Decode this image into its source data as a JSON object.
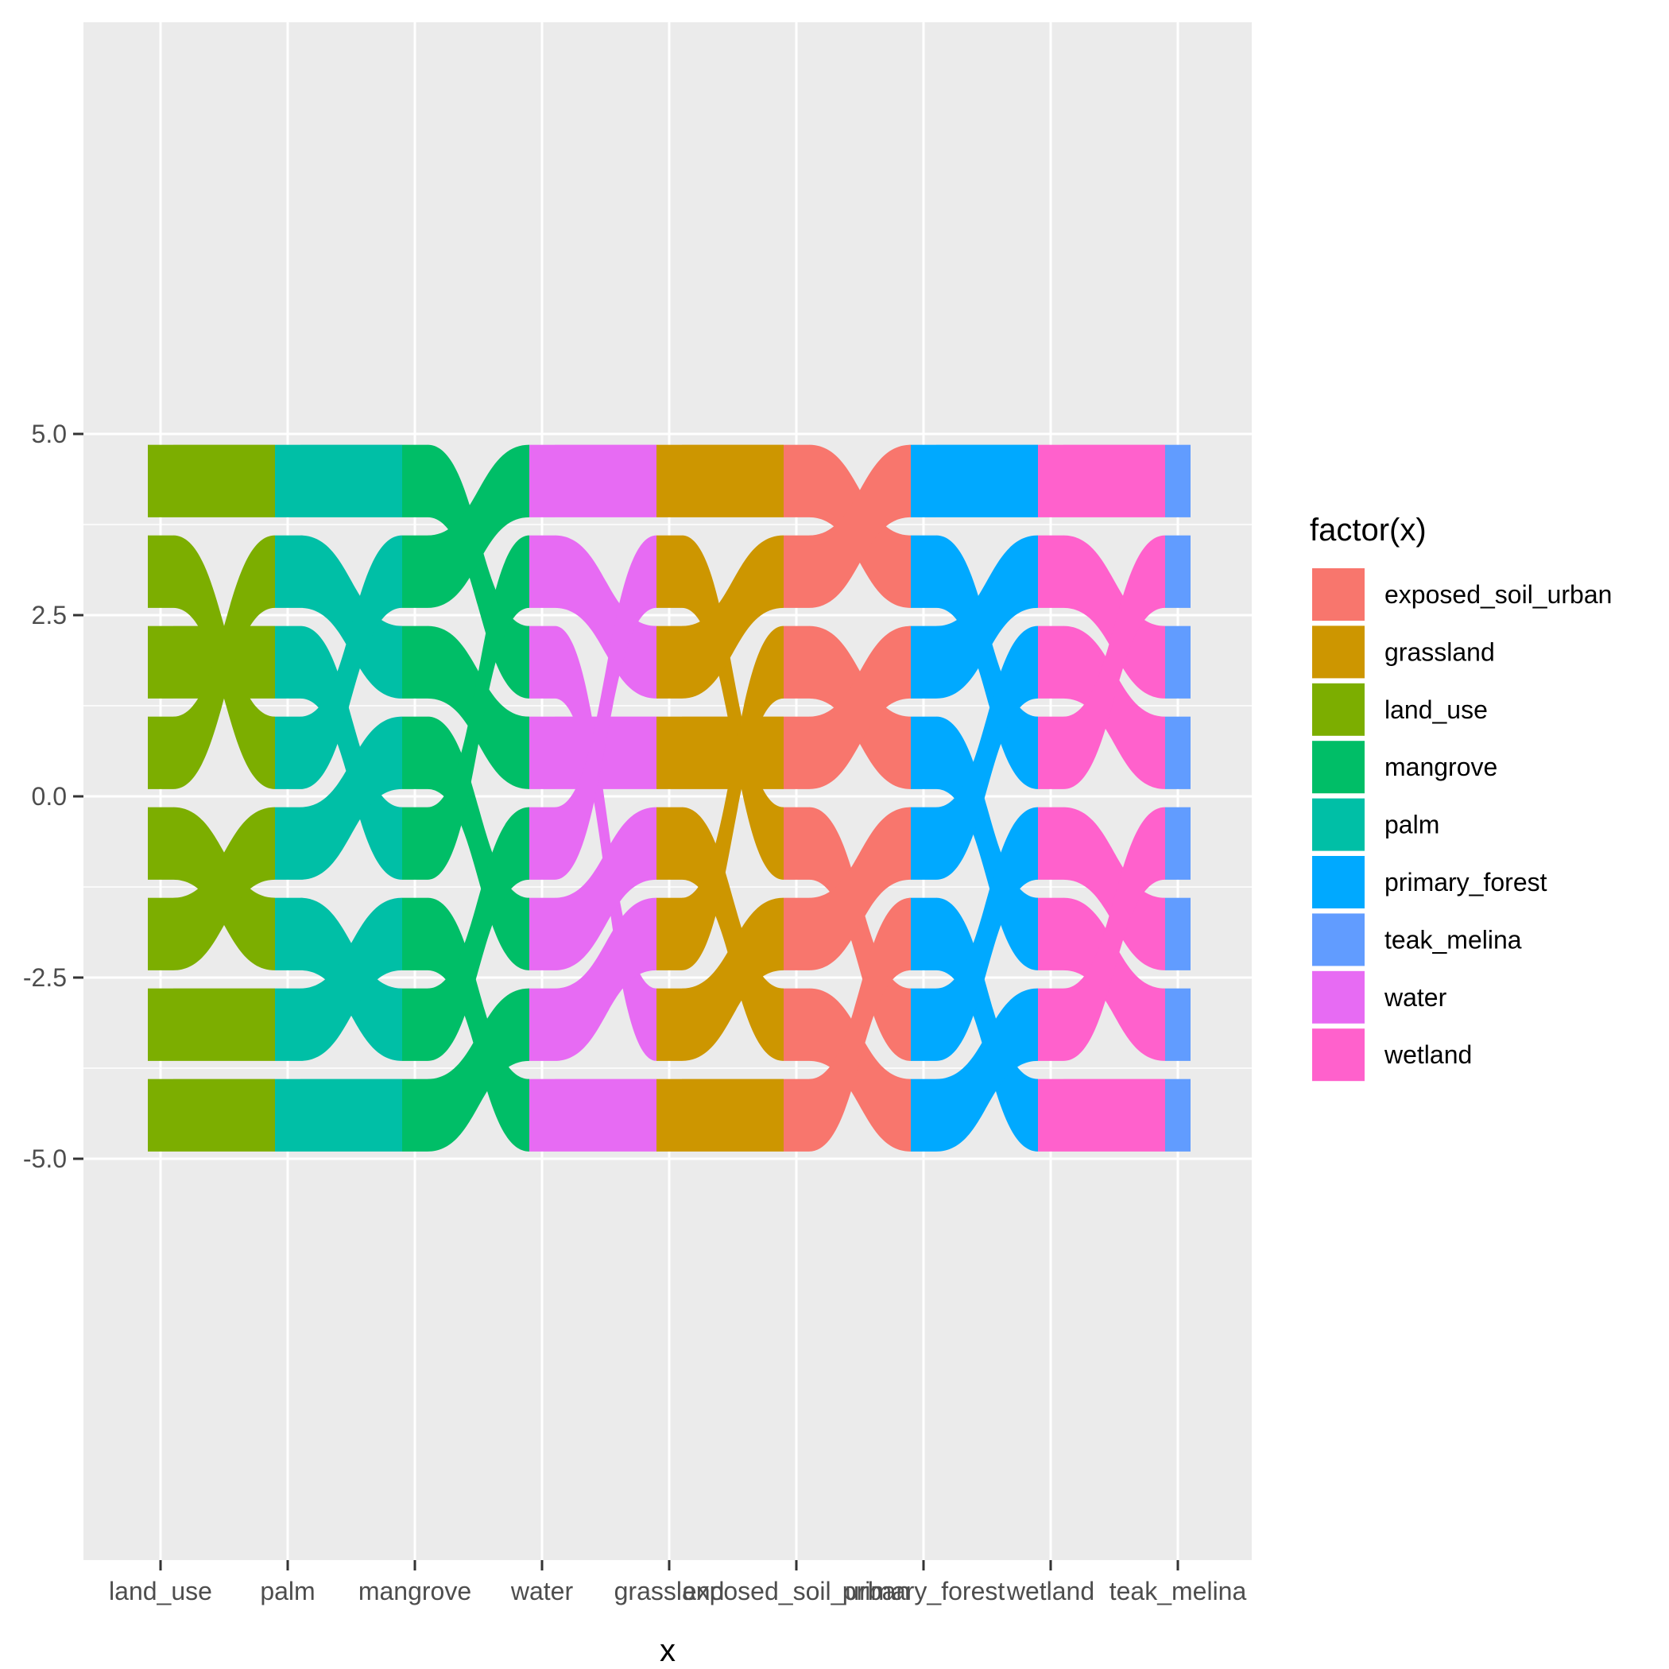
{
  "chart_data": {
    "type": "area",
    "title": "",
    "xlabel": "x",
    "ylabel": "",
    "x_categories": [
      "land_use",
      "palm",
      "mangrove",
      "water",
      "grassland",
      "exposed_soil_urban",
      "primary_forest",
      "wetland",
      "teak_melina"
    ],
    "ylim": [
      -5.0,
      5.0
    ],
    "y_ticks": [
      5.0,
      2.5,
      0.0,
      -2.5,
      -5.0
    ],
    "y_tick_labels": [
      "5.0",
      "2.5",
      "0.0",
      "-2.5",
      "-5.0"
    ],
    "grid": true,
    "legend": {
      "title": "factor(x)",
      "position": "right",
      "entries": [
        {
          "label": "exposed_soil_urban",
          "color": "#F8766D"
        },
        {
          "label": "grassland",
          "color": "#CD9600"
        },
        {
          "label": "land_use",
          "color": "#7CAE00"
        },
        {
          "label": "mangrove",
          "color": "#00BE67"
        },
        {
          "label": "palm",
          "color": "#00BFA6"
        },
        {
          "label": "primary_forest",
          "color": "#00A9FF"
        },
        {
          "label": "teak_melina",
          "color": "#619CFF"
        },
        {
          "label": "water",
          "color": "#E76BF3"
        },
        {
          "label": "wetland",
          "color": "#FF61CC"
        }
      ]
    },
    "stratum_color_by_x": [
      "#7CAE00",
      "#00BFA6",
      "#00BE67",
      "#E76BF3",
      "#CD9600",
      "#F8766D",
      "#00A9FF",
      "#FF61CC",
      "#619CFF"
    ],
    "flow_bands": [
      {
        "y_top": 4.85,
        "y_bottom": 3.85
      },
      {
        "y_top": 3.6,
        "y_bottom": 2.6
      },
      {
        "y_top": 2.35,
        "y_bottom": 1.35
      },
      {
        "y_top": 1.1,
        "y_bottom": 0.1
      },
      {
        "y_top": -0.15,
        "y_bottom": -1.15
      },
      {
        "y_top": -1.4,
        "y_bottom": -2.4
      },
      {
        "y_top": -2.65,
        "y_bottom": -3.65
      },
      {
        "y_top": -3.9,
        "y_bottom": -4.9
      }
    ],
    "flows_between": [
      [
        [
          0,
          0
        ],
        [
          1,
          3
        ],
        [
          2,
          2
        ],
        [
          3,
          1
        ],
        [
          4,
          5
        ],
        [
          5,
          4
        ],
        [
          6,
          6
        ],
        [
          7,
          7
        ]
      ],
      [
        [
          0,
          0
        ],
        [
          1,
          2
        ],
        [
          2,
          4
        ],
        [
          3,
          1
        ],
        [
          4,
          3
        ],
        [
          5,
          6
        ],
        [
          6,
          5
        ],
        [
          7,
          7
        ]
      ],
      [
        [
          0,
          2
        ],
        [
          1,
          0
        ],
        [
          2,
          3
        ],
        [
          3,
          5
        ],
        [
          4,
          1
        ],
        [
          5,
          7
        ],
        [
          6,
          4
        ],
        [
          7,
          6
        ]
      ],
      [
        [
          0,
          0
        ],
        [
          1,
          2
        ],
        [
          2,
          6
        ],
        [
          3,
          3
        ],
        [
          4,
          1
        ],
        [
          5,
          4
        ],
        [
          6,
          5
        ],
        [
          7,
          7
        ]
      ],
      [
        [
          0,
          0
        ],
        [
          1,
          4
        ],
        [
          2,
          1
        ],
        [
          3,
          3
        ],
        [
          4,
          6
        ],
        [
          5,
          2
        ],
        [
          6,
          5
        ],
        [
          7,
          7
        ]
      ],
      [
        [
          0,
          1
        ],
        [
          1,
          0
        ],
        [
          2,
          3
        ],
        [
          3,
          2
        ],
        [
          4,
          6
        ],
        [
          5,
          4
        ],
        [
          6,
          7
        ],
        [
          7,
          5
        ]
      ],
      [
        [
          0,
          0
        ],
        [
          1,
          3
        ],
        [
          2,
          1
        ],
        [
          3,
          5
        ],
        [
          4,
          2
        ],
        [
          5,
          7
        ],
        [
          6,
          4
        ],
        [
          7,
          6
        ]
      ],
      [
        [
          0,
          0
        ],
        [
          1,
          2
        ],
        [
          2,
          3
        ],
        [
          3,
          1
        ],
        [
          4,
          5
        ],
        [
          5,
          6
        ],
        [
          6,
          4
        ],
        [
          7,
          7
        ]
      ]
    ]
  }
}
